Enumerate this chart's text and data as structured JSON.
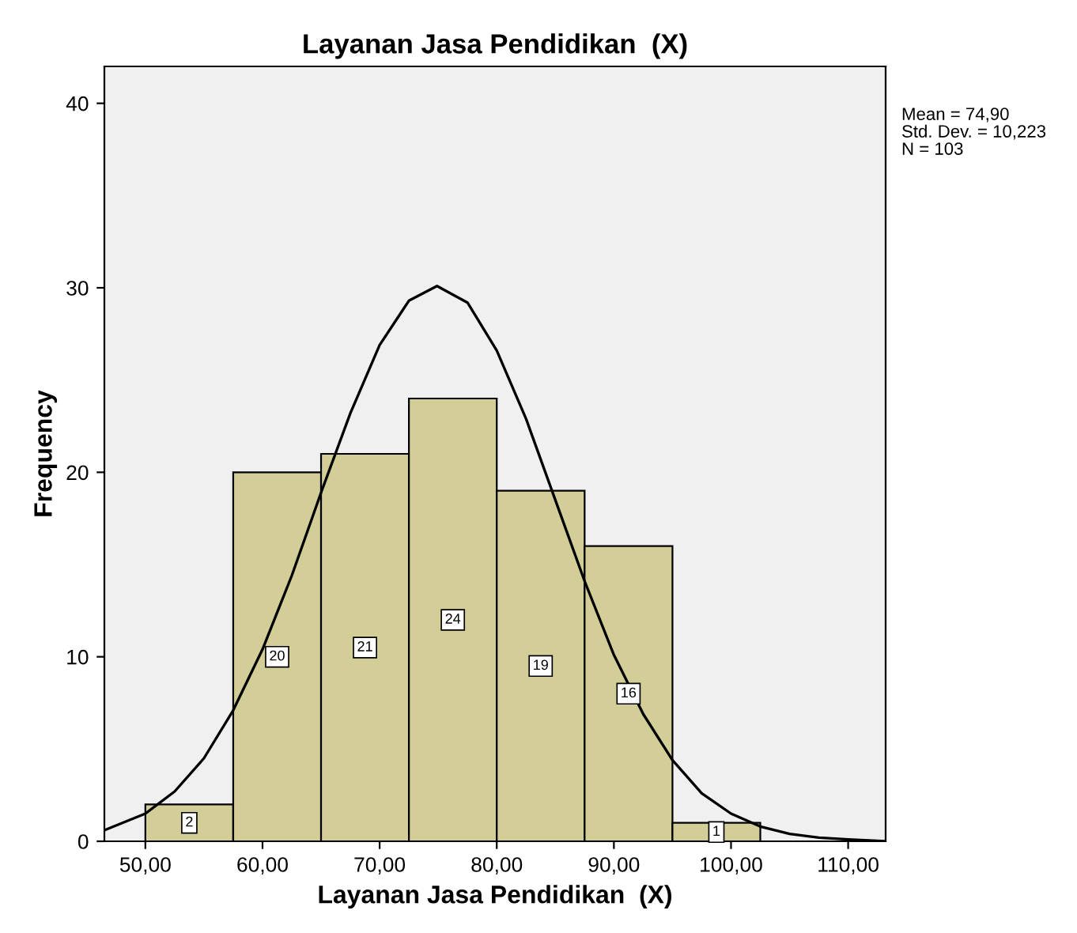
{
  "chart_data": {
    "type": "histogram",
    "title": "Layanan Jasa Pendidikan  (X)",
    "xlabel": "Layanan Jasa Pendidikan  (X)",
    "ylabel": "Frequency",
    "bins": [
      50,
      57.5,
      65,
      72.5,
      80,
      87.5,
      95,
      102.5
    ],
    "values": [
      2,
      20,
      21,
      24,
      19,
      16,
      1
    ],
    "color": "#d3ce97",
    "value_labels": [
      "2",
      "20",
      "21",
      "24",
      "19",
      "16",
      "1"
    ],
    "series": [
      {
        "type": "line",
        "color": "#000000",
        "x": [
          46.5,
          50,
          52.5,
          55,
          57.5,
          60,
          62.5,
          65,
          67.5,
          70,
          72.5,
          74.9,
          77.5,
          80,
          82.5,
          85,
          87.5,
          90,
          92.5,
          95,
          97.5,
          100,
          102.5,
          105,
          107.5,
          110,
          113.2
        ],
        "values": [
          0.6,
          1.5,
          2.7,
          4.5,
          7.1,
          10.4,
          14.4,
          18.9,
          23.2,
          26.9,
          29.3,
          30.1,
          29.2,
          26.6,
          22.9,
          18.5,
          14.1,
          10.1,
          6.9,
          4.4,
          2.6,
          1.5,
          0.8,
          0.4,
          0.2,
          0.1,
          0.0
        ]
      }
    ],
    "annotations": [
      "Mean = 74,90",
      "Std. Dev. = 10,223",
      "N = 103"
    ],
    "xlim": [
      46.5,
      113.2
    ],
    "ylim": [
      0,
      42
    ],
    "xticks": [
      {
        "value": 50,
        "label": "50,00"
      },
      {
        "value": 60,
        "label": "60,00"
      },
      {
        "value": 70,
        "label": "70,00"
      },
      {
        "value": 80,
        "label": "80,00"
      },
      {
        "value": 90,
        "label": "90,00"
      },
      {
        "value": 100,
        "label": "100,00"
      },
      {
        "value": 110,
        "label": "110,00"
      }
    ],
    "yticks": [
      0,
      10,
      20,
      30,
      40
    ],
    "grid": false,
    "legend": false
  }
}
